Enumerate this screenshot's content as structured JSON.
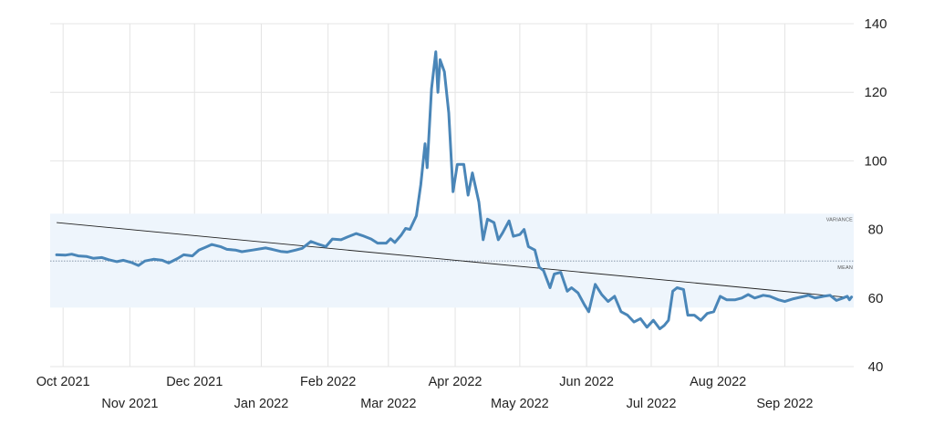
{
  "chart_data": {
    "type": "line",
    "title": "",
    "xlabel": "",
    "ylabel": "",
    "ylim": [
      40,
      140
    ],
    "y_ticks": [
      "140",
      "120",
      "100",
      "80",
      "60",
      "40"
    ],
    "x_ticks": [
      {
        "label": "Oct 2021",
        "date": "2021-10-01",
        "row": 1
      },
      {
        "label": "Nov 2021",
        "date": "2021-11-01",
        "row": 2
      },
      {
        "label": "Dec 2021",
        "date": "2021-12-01",
        "row": 1
      },
      {
        "label": "Jan 2022",
        "date": "2022-01-01",
        "row": 2
      },
      {
        "label": "Feb 2022",
        "date": "2022-02-01",
        "row": 1
      },
      {
        "label": "Mar 2022",
        "date": "2022-03-01",
        "row": 2
      },
      {
        "label": "Apr 2022",
        "date": "2022-04-01",
        "row": 1
      },
      {
        "label": "May 2022",
        "date": "2022-05-01",
        "row": 2
      },
      {
        "label": "Jun 2022",
        "date": "2022-06-01",
        "row": 1
      },
      {
        "label": "Jul 2022",
        "date": "2022-07-01",
        "row": 2
      },
      {
        "label": "Aug 2022",
        "date": "2022-08-01",
        "row": 1
      },
      {
        "label": "Sep 2022",
        "date": "2022-09-01",
        "row": 2
      }
    ],
    "grid": true,
    "colors": {
      "line": "#4a86b8",
      "band": "#eef5fc",
      "trend": "#222222",
      "mean": "#7a8aa0",
      "grid": "#e4e4e4"
    },
    "variance_label": "VARIANCE",
    "mean_label": "MEAN",
    "mean_value": 70.8,
    "variance_range": [
      57.2,
      84.6
    ],
    "trend": {
      "start": [
        "2021-09-28",
        82.0
      ],
      "end": [
        "2022-09-30",
        60.2
      ]
    },
    "series": [
      {
        "name": "",
        "points": [
          [
            "2021-09-28",
            72.6
          ],
          [
            "2021-10-02",
            72.5
          ],
          [
            "2021-10-05",
            72.8
          ],
          [
            "2021-10-08",
            72.3
          ],
          [
            "2021-10-12",
            72.1
          ],
          [
            "2021-10-15",
            71.6
          ],
          [
            "2021-10-19",
            71.8
          ],
          [
            "2021-10-22",
            71.2
          ],
          [
            "2021-10-26",
            70.6
          ],
          [
            "2021-10-29",
            71.0
          ],
          [
            "2021-11-02",
            70.3
          ],
          [
            "2021-11-05",
            69.5
          ],
          [
            "2021-11-08",
            70.8
          ],
          [
            "2021-11-12",
            71.3
          ],
          [
            "2021-11-16",
            71.0
          ],
          [
            "2021-11-19",
            70.2
          ],
          [
            "2021-11-23",
            71.5
          ],
          [
            "2021-11-26",
            72.6
          ],
          [
            "2021-11-30",
            72.3
          ],
          [
            "2021-12-03",
            74.0
          ],
          [
            "2021-12-06",
            74.8
          ],
          [
            "2021-12-09",
            75.6
          ],
          [
            "2021-12-13",
            75.0
          ],
          [
            "2021-12-16",
            74.2
          ],
          [
            "2021-12-20",
            74.0
          ],
          [
            "2021-12-23",
            73.5
          ],
          [
            "2021-12-28",
            74.0
          ],
          [
            "2022-01-03",
            74.6
          ],
          [
            "2022-01-06",
            74.2
          ],
          [
            "2022-01-10",
            73.6
          ],
          [
            "2022-01-13",
            73.4
          ],
          [
            "2022-01-17",
            74.0
          ],
          [
            "2022-01-20",
            74.5
          ],
          [
            "2022-01-24",
            76.5
          ],
          [
            "2022-01-27",
            75.8
          ],
          [
            "2022-01-31",
            75.0
          ],
          [
            "2022-02-03",
            77.2
          ],
          [
            "2022-02-07",
            77.0
          ],
          [
            "2022-02-10",
            77.8
          ],
          [
            "2022-02-14",
            78.8
          ],
          [
            "2022-02-17",
            78.2
          ],
          [
            "2022-02-21",
            77.2
          ],
          [
            "2022-02-24",
            76.0
          ],
          [
            "2022-02-28",
            76.0
          ],
          [
            "2022-03-02",
            77.3
          ],
          [
            "2022-03-04",
            76.2
          ],
          [
            "2022-03-07",
            78.4
          ],
          [
            "2022-03-09",
            80.3
          ],
          [
            "2022-03-11",
            80.0
          ],
          [
            "2022-03-14",
            84.0
          ],
          [
            "2022-03-16",
            93.0
          ],
          [
            "2022-03-18",
            105.0
          ],
          [
            "2022-03-19",
            98.0
          ],
          [
            "2022-03-21",
            121.0
          ],
          [
            "2022-03-23",
            131.8
          ],
          [
            "2022-03-24",
            120.0
          ],
          [
            "2022-03-25",
            129.5
          ],
          [
            "2022-03-27",
            126.0
          ],
          [
            "2022-03-29",
            114.0
          ],
          [
            "2022-03-31",
            91.0
          ],
          [
            "2022-04-02",
            99.0
          ],
          [
            "2022-04-05",
            99.0
          ],
          [
            "2022-04-07",
            90.0
          ],
          [
            "2022-04-09",
            96.5
          ],
          [
            "2022-04-12",
            88.0
          ],
          [
            "2022-04-14",
            77.0
          ],
          [
            "2022-04-16",
            83.0
          ],
          [
            "2022-04-19",
            82.0
          ],
          [
            "2022-04-21",
            77.0
          ],
          [
            "2022-04-23",
            79.0
          ],
          [
            "2022-04-26",
            82.5
          ],
          [
            "2022-04-28",
            78.0
          ],
          [
            "2022-05-01",
            78.5
          ],
          [
            "2022-05-03",
            80.0
          ],
          [
            "2022-05-05",
            75.0
          ],
          [
            "2022-05-08",
            74.0
          ],
          [
            "2022-05-10",
            69.0
          ],
          [
            "2022-05-12",
            68.0
          ],
          [
            "2022-05-15",
            63.0
          ],
          [
            "2022-05-17",
            67.0
          ],
          [
            "2022-05-20",
            67.5
          ],
          [
            "2022-05-23",
            62.0
          ],
          [
            "2022-05-25",
            63.0
          ],
          [
            "2022-05-28",
            61.5
          ],
          [
            "2022-05-31",
            58.0
          ],
          [
            "2022-06-02",
            56.0
          ],
          [
            "2022-06-05",
            64.0
          ],
          [
            "2022-06-08",
            61.0
          ],
          [
            "2022-06-11",
            59.0
          ],
          [
            "2022-06-14",
            60.5
          ],
          [
            "2022-06-17",
            56.0
          ],
          [
            "2022-06-20",
            55.0
          ],
          [
            "2022-06-23",
            53.0
          ],
          [
            "2022-06-26",
            54.0
          ],
          [
            "2022-06-29",
            51.5
          ],
          [
            "2022-07-02",
            53.5
          ],
          [
            "2022-07-05",
            51.0
          ],
          [
            "2022-07-07",
            52.0
          ],
          [
            "2022-07-09",
            53.5
          ],
          [
            "2022-07-11",
            62.0
          ],
          [
            "2022-07-13",
            63.0
          ],
          [
            "2022-07-16",
            62.5
          ],
          [
            "2022-07-18",
            55.0
          ],
          [
            "2022-07-21",
            55.0
          ],
          [
            "2022-07-24",
            53.5
          ],
          [
            "2022-07-27",
            55.5
          ],
          [
            "2022-07-30",
            56.0
          ],
          [
            "2022-08-02",
            60.5
          ],
          [
            "2022-08-05",
            59.5
          ],
          [
            "2022-08-09",
            59.5
          ],
          [
            "2022-08-12",
            60.0
          ],
          [
            "2022-08-15",
            61.0
          ],
          [
            "2022-08-18",
            60.0
          ],
          [
            "2022-08-22",
            60.8
          ],
          [
            "2022-08-25",
            60.5
          ],
          [
            "2022-08-29",
            59.5
          ],
          [
            "2022-09-01",
            59.0
          ],
          [
            "2022-09-05",
            59.8
          ],
          [
            "2022-09-08",
            60.2
          ],
          [
            "2022-09-12",
            60.8
          ],
          [
            "2022-09-15",
            60.0
          ],
          [
            "2022-09-19",
            60.5
          ],
          [
            "2022-09-22",
            60.8
          ],
          [
            "2022-09-25",
            59.3
          ],
          [
            "2022-09-28",
            60.0
          ],
          [
            "2022-09-30",
            60.5
          ],
          [
            "2022-10-01",
            59.5
          ],
          [
            "2022-10-02",
            60.3
          ]
        ]
      }
    ]
  }
}
